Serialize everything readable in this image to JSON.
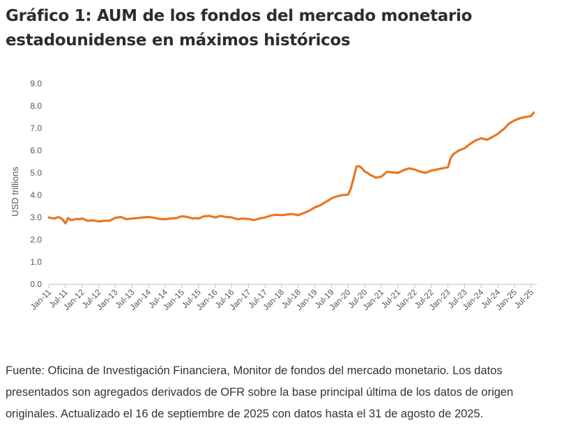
{
  "title": "Gráfico 1: AUM de los fondos del mercado monetario estadounidense en máximos históricos",
  "source": "Fuente: Oficina de Investigación Financiera, Monitor de fondos del mercado monetario. Los datos presentados son agregados derivados de OFR sobre la base principal última de los datos de origen originales. Actualizado el 16 de septiembre de 2025 con datos hasta el 31 de agosto de 2025.",
  "colors": {
    "line": "#E87722",
    "text": "#555555",
    "axis": "#bfbfbf"
  },
  "chart_data": {
    "type": "line",
    "ylabel": "USD trillions",
    "ylim": [
      0,
      9
    ],
    "yticks": [
      "0.0",
      "1.0",
      "2.0",
      "3.0",
      "4.0",
      "5.0",
      "6.0",
      "7.0",
      "8.0",
      "9.0"
    ],
    "grid": false,
    "categories": [
      "Jan-11",
      "Jul-11",
      "Jan-12",
      "Jul-12",
      "Jan-13",
      "Jul-13",
      "Jan-14",
      "Jul-14",
      "Jan-15",
      "Jul-15",
      "Jan-16",
      "Jul-16",
      "Jan-17",
      "Jul-17",
      "Jan-18",
      "Jul-18",
      "Jan-19",
      "Jul-19",
      "Jan-20",
      "Jul-20",
      "Jan-21",
      "Jul-21",
      "Jan-22",
      "Jul-22",
      "Jan-23",
      "Jul-23",
      "Jan-24",
      "Jul-24",
      "Jan-25",
      "Jul-25"
    ],
    "series": [
      {
        "x": [
          2011.0,
          2011.08,
          2011.17,
          2011.25,
          2011.33,
          2011.42,
          2011.5,
          2011.58,
          2011.67,
          2011.75,
          2011.83,
          2011.92,
          2012.0,
          2012.17,
          2012.33,
          2012.5,
          2012.67,
          2012.83,
          2013.0,
          2013.17,
          2013.33,
          2013.5,
          2013.67,
          2013.83,
          2014.0,
          2014.17,
          2014.33,
          2014.5,
          2014.67,
          2014.83,
          2015.0,
          2015.17,
          2015.33,
          2015.42,
          2015.5,
          2015.67,
          2015.83,
          2016.0,
          2016.17,
          2016.33,
          2016.5,
          2016.67,
          2016.83,
          2017.0,
          2017.17,
          2017.33,
          2017.5,
          2017.67,
          2017.83,
          2018.0,
          2018.17,
          2018.33,
          2018.5,
          2018.67,
          2018.83,
          2019.0,
          2019.17,
          2019.33,
          2019.5,
          2019.67,
          2019.83,
          2020.0,
          2020.08,
          2020.17,
          2020.25,
          2020.33,
          2020.42,
          2020.5,
          2020.58,
          2020.67,
          2020.75,
          2020.83,
          2021.0,
          2021.17,
          2021.33,
          2021.5,
          2021.67,
          2021.83,
          2022.0,
          2022.17,
          2022.33,
          2022.5,
          2022.67,
          2022.83,
          2023.0,
          2023.08,
          2023.17,
          2023.33,
          2023.5,
          2023.67,
          2023.83,
          2024.0,
          2024.17,
          2024.33,
          2024.5,
          2024.67,
          2024.83,
          2025.0,
          2025.17,
          2025.33,
          2025.5,
          2025.58
        ],
        "values": [
          3.0,
          2.97,
          2.95,
          3.0,
          3.0,
          2.9,
          2.73,
          2.97,
          2.88,
          2.9,
          2.93,
          2.92,
          2.95,
          2.85,
          2.87,
          2.82,
          2.85,
          2.85,
          2.98,
          3.02,
          2.92,
          2.95,
          2.97,
          3.0,
          3.02,
          2.98,
          2.93,
          2.92,
          2.95,
          2.97,
          3.05,
          3.02,
          2.95,
          2.97,
          2.95,
          3.05,
          3.07,
          3.0,
          3.07,
          3.02,
          3.0,
          2.92,
          2.95,
          2.93,
          2.88,
          2.95,
          3.0,
          3.08,
          3.12,
          3.1,
          3.13,
          3.15,
          3.1,
          3.2,
          3.3,
          3.45,
          3.55,
          3.7,
          3.85,
          3.95,
          4.0,
          4.02,
          4.3,
          4.8,
          5.28,
          5.3,
          5.2,
          5.05,
          5.0,
          4.9,
          4.85,
          4.78,
          4.83,
          5.05,
          5.02,
          5.0,
          5.12,
          5.2,
          5.15,
          5.05,
          5.0,
          5.1,
          5.15,
          5.2,
          5.25,
          5.65,
          5.85,
          6.0,
          6.1,
          6.3,
          6.45,
          6.55,
          6.48,
          6.6,
          6.75,
          6.95,
          7.2,
          7.35,
          7.45,
          7.5,
          7.55,
          7.7
        ]
      }
    ]
  }
}
